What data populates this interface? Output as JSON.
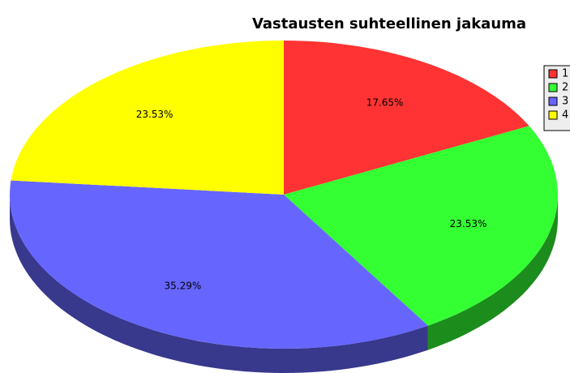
{
  "chart_data": {
    "type": "pie",
    "title": "Vastausten suhteellinen jakauma",
    "categories": [
      "1",
      "2",
      "3",
      "4"
    ],
    "values": [
      17.65,
      23.53,
      35.29,
      23.53
    ],
    "value_labels": [
      "17.65%",
      "23.53%",
      "35.29%",
      "23.53%"
    ],
    "colors": [
      "#ff3333",
      "#33ff33",
      "#6666ff",
      "#ffff00"
    ],
    "legend": "right"
  }
}
